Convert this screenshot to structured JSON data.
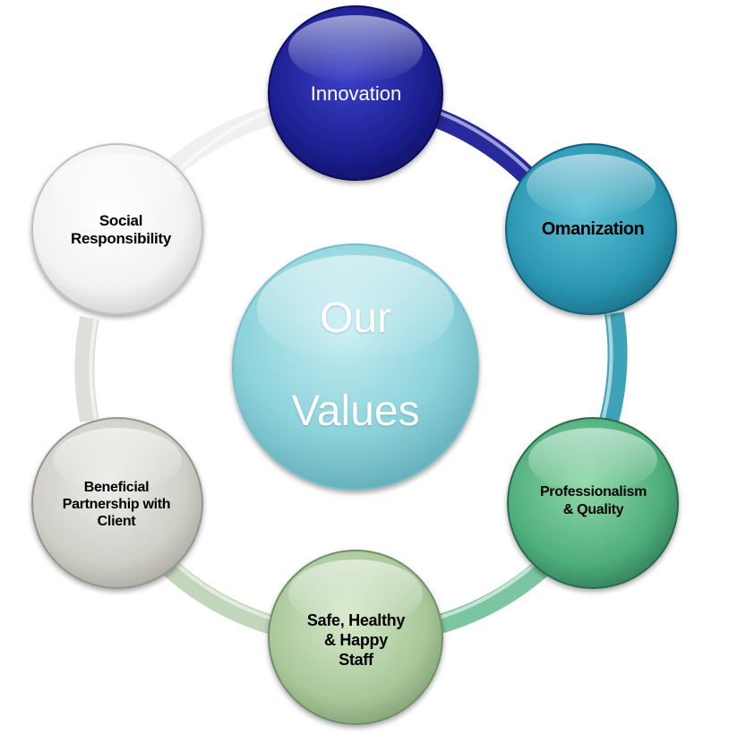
{
  "center": {
    "line1": "Our",
    "line2": "Values"
  },
  "values": [
    {
      "id": "innovation",
      "label": "Innovation"
    },
    {
      "id": "omanization",
      "label": "Omanization"
    },
    {
      "id": "professionalism",
      "label": "Professionalism\n& Quality"
    },
    {
      "id": "safe",
      "label": "Safe, Healthy\n& Happy\nStaff"
    },
    {
      "id": "beneficial",
      "label": "Beneficial\nPartnership with\nClient"
    },
    {
      "id": "social",
      "label": "Social\nResponsibility"
    }
  ],
  "colors": {
    "innovation": "#1c1f8f",
    "omanization": "#2b96b2",
    "professionalism": "#4fae7c",
    "safe": "#a9c79a",
    "beneficial": "#cfcfc8",
    "social": "#f2f2f2",
    "center": "#8ed3dc"
  }
}
